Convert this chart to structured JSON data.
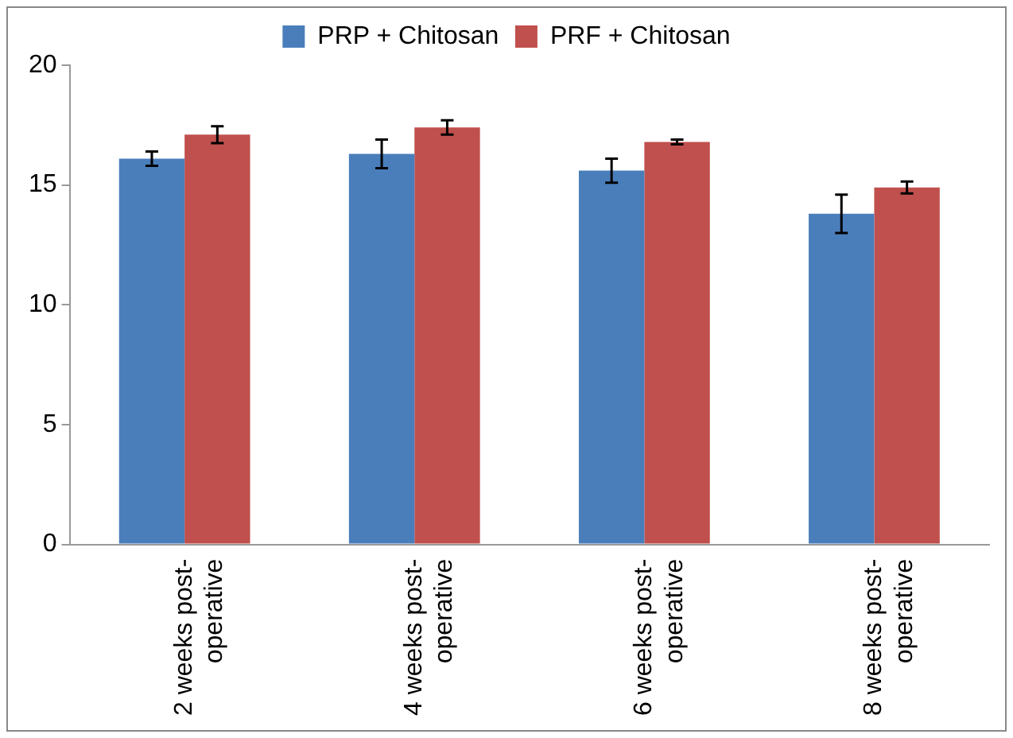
{
  "chart_data": {
    "type": "bar",
    "categories": [
      "2 weeks post-operative",
      "4 weeks post-operative",
      "6 weeks post-operative",
      "8 weeks post-operative"
    ],
    "series": [
      {
        "name": "PRP + Chitosan",
        "color": "#4a7ebb",
        "values": [
          16.1,
          16.3,
          15.6,
          13.8
        ],
        "errors": [
          0.3,
          0.6,
          0.5,
          0.8
        ]
      },
      {
        "name": "PRF + Chitosan",
        "color": "#c0504d",
        "values": [
          17.1,
          17.4,
          16.8,
          14.9
        ],
        "errors": [
          0.35,
          0.3,
          0.1,
          0.25
        ]
      }
    ],
    "ylim": [
      0,
      20
    ],
    "yticks": [
      0,
      5,
      10,
      15,
      20
    ],
    "grid": false,
    "legend": "top"
  }
}
